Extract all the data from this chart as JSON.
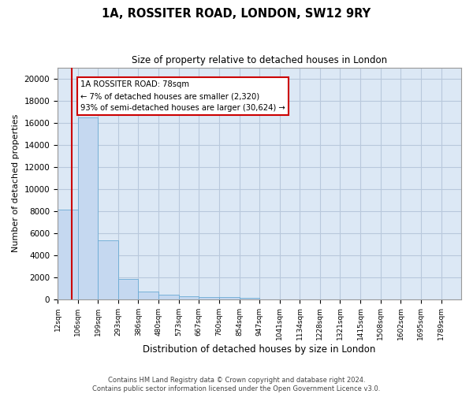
{
  "title": "1A, ROSSITER ROAD, LONDON, SW12 9RY",
  "subtitle": "Size of property relative to detached houses in London",
  "xlabel": "Distribution of detached houses by size in London",
  "ylabel": "Number of detached properties",
  "footer_line1": "Contains HM Land Registry data © Crown copyright and database right 2024.",
  "footer_line2": "Contains public sector information licensed under the Open Government Licence v3.0.",
  "annotation_title": "1A ROSSITER ROAD: 78sqm",
  "annotation_line1": "← 7% of detached houses are smaller (2,320)",
  "annotation_line2": "93% of semi-detached houses are larger (30,624) →",
  "property_sqm": 78,
  "bin_edges": [
    12,
    106,
    199,
    293,
    386,
    480,
    573,
    667,
    760,
    854,
    947,
    1041,
    1134,
    1228,
    1321,
    1415,
    1508,
    1602,
    1695,
    1789,
    1882
  ],
  "bin_counts": [
    8100,
    16500,
    5300,
    1850,
    700,
    380,
    280,
    200,
    175,
    130,
    0,
    0,
    0,
    0,
    0,
    0,
    0,
    0,
    0,
    0
  ],
  "bar_color": "#c5d8f0",
  "bar_edgecolor": "#6aaad4",
  "redline_color": "#cc0000",
  "annotation_box_edgecolor": "#cc0000",
  "background_color": "#ffffff",
  "plot_bg_color": "#dce8f5",
  "grid_color": "#b8c8dc",
  "ylim": [
    0,
    21000
  ],
  "yticks": [
    0,
    2000,
    4000,
    6000,
    8000,
    10000,
    12000,
    14000,
    16000,
    18000,
    20000
  ],
  "ytick_labels": [
    "0",
    "2000",
    "4000",
    "6000",
    "8000",
    "10000",
    "12000",
    "14000",
    "16000",
    "18000",
    "20000"
  ]
}
